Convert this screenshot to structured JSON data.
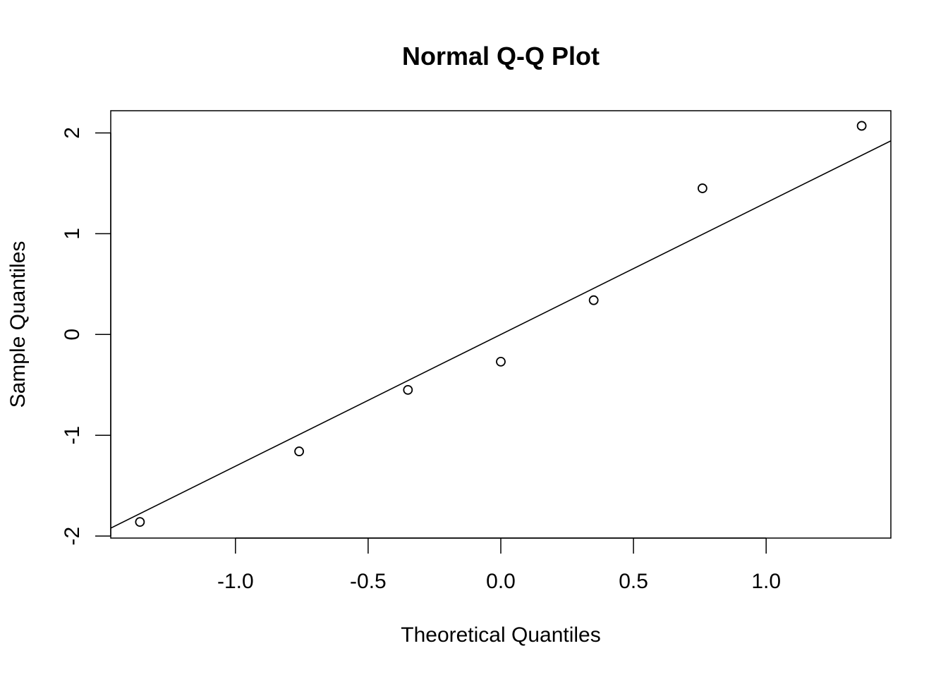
{
  "chart_data": {
    "type": "scatter",
    "title": "Normal Q-Q Plot",
    "xlabel": "Theoretical Quantiles",
    "ylabel": "Sample Quantiles",
    "xlim": [
      -1.47,
      1.47
    ],
    "ylim": [
      -2.02,
      2.22
    ],
    "xticks": [
      -1.0,
      -0.5,
      0.0,
      0.5,
      1.0
    ],
    "xtick_labels": [
      "-1.0",
      "-0.5",
      "0.0",
      "0.5",
      "1.0"
    ],
    "yticks": [
      -2,
      -1,
      0,
      1,
      2
    ],
    "ytick_labels": [
      "-2",
      "-1",
      "0",
      "1",
      "2"
    ],
    "grid": false,
    "legend": "none",
    "series": [
      {
        "x": [
          -1.36,
          -0.76,
          -0.35,
          0.0,
          0.35,
          0.76,
          1.36
        ],
        "y": [
          -1.86,
          -1.16,
          -0.55,
          -0.27,
          0.34,
          1.45,
          2.07
        ],
        "marker": "open-circle"
      }
    ],
    "reference_line": {
      "type": "qqline",
      "slope": 1.307,
      "intercept": 0.0
    },
    "colors": {
      "points": "#000000",
      "line": "#000000",
      "background": "#ffffff"
    }
  }
}
